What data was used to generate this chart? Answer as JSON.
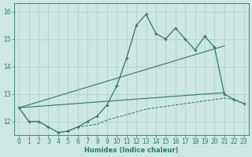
{
  "xlabel": "Humidex (Indice chaleur)",
  "xlim": [
    -0.5,
    23.5
  ],
  "ylim": [
    11.5,
    16.3
  ],
  "yticks": [
    12,
    13,
    14,
    15,
    16
  ],
  "xticks": [
    0,
    1,
    2,
    3,
    4,
    5,
    6,
    7,
    8,
    9,
    10,
    11,
    12,
    13,
    14,
    15,
    16,
    17,
    18,
    19,
    20,
    21,
    22,
    23
  ],
  "bg_color": "#cce8e0",
  "grid_color": "#aacccc",
  "line_color": "#2a7a6a",
  "main_series": [
    12.5,
    12.0,
    12.0,
    11.8,
    11.6,
    11.65,
    11.8,
    12.0,
    12.2,
    12.6,
    13.3,
    14.3,
    15.5,
    15.9,
    15.2,
    15.0,
    15.4,
    15.0,
    14.6,
    15.1,
    14.7,
    13.0,
    12.8,
    12.65
  ],
  "bottom_series": [
    12.5,
    12.0,
    12.0,
    11.8,
    11.6,
    11.65,
    11.8,
    11.85,
    11.9,
    12.05,
    12.15,
    12.25,
    12.35,
    12.45,
    12.5,
    12.55,
    12.6,
    12.65,
    12.7,
    12.75,
    12.8,
    12.85,
    12.8,
    12.65
  ],
  "trend1_series_x": [
    0,
    21
  ],
  "trend1_series_y": [
    12.5,
    13.05
  ],
  "trend2_series_x": [
    0,
    21
  ],
  "trend2_series_y": [
    12.5,
    14.75
  ]
}
